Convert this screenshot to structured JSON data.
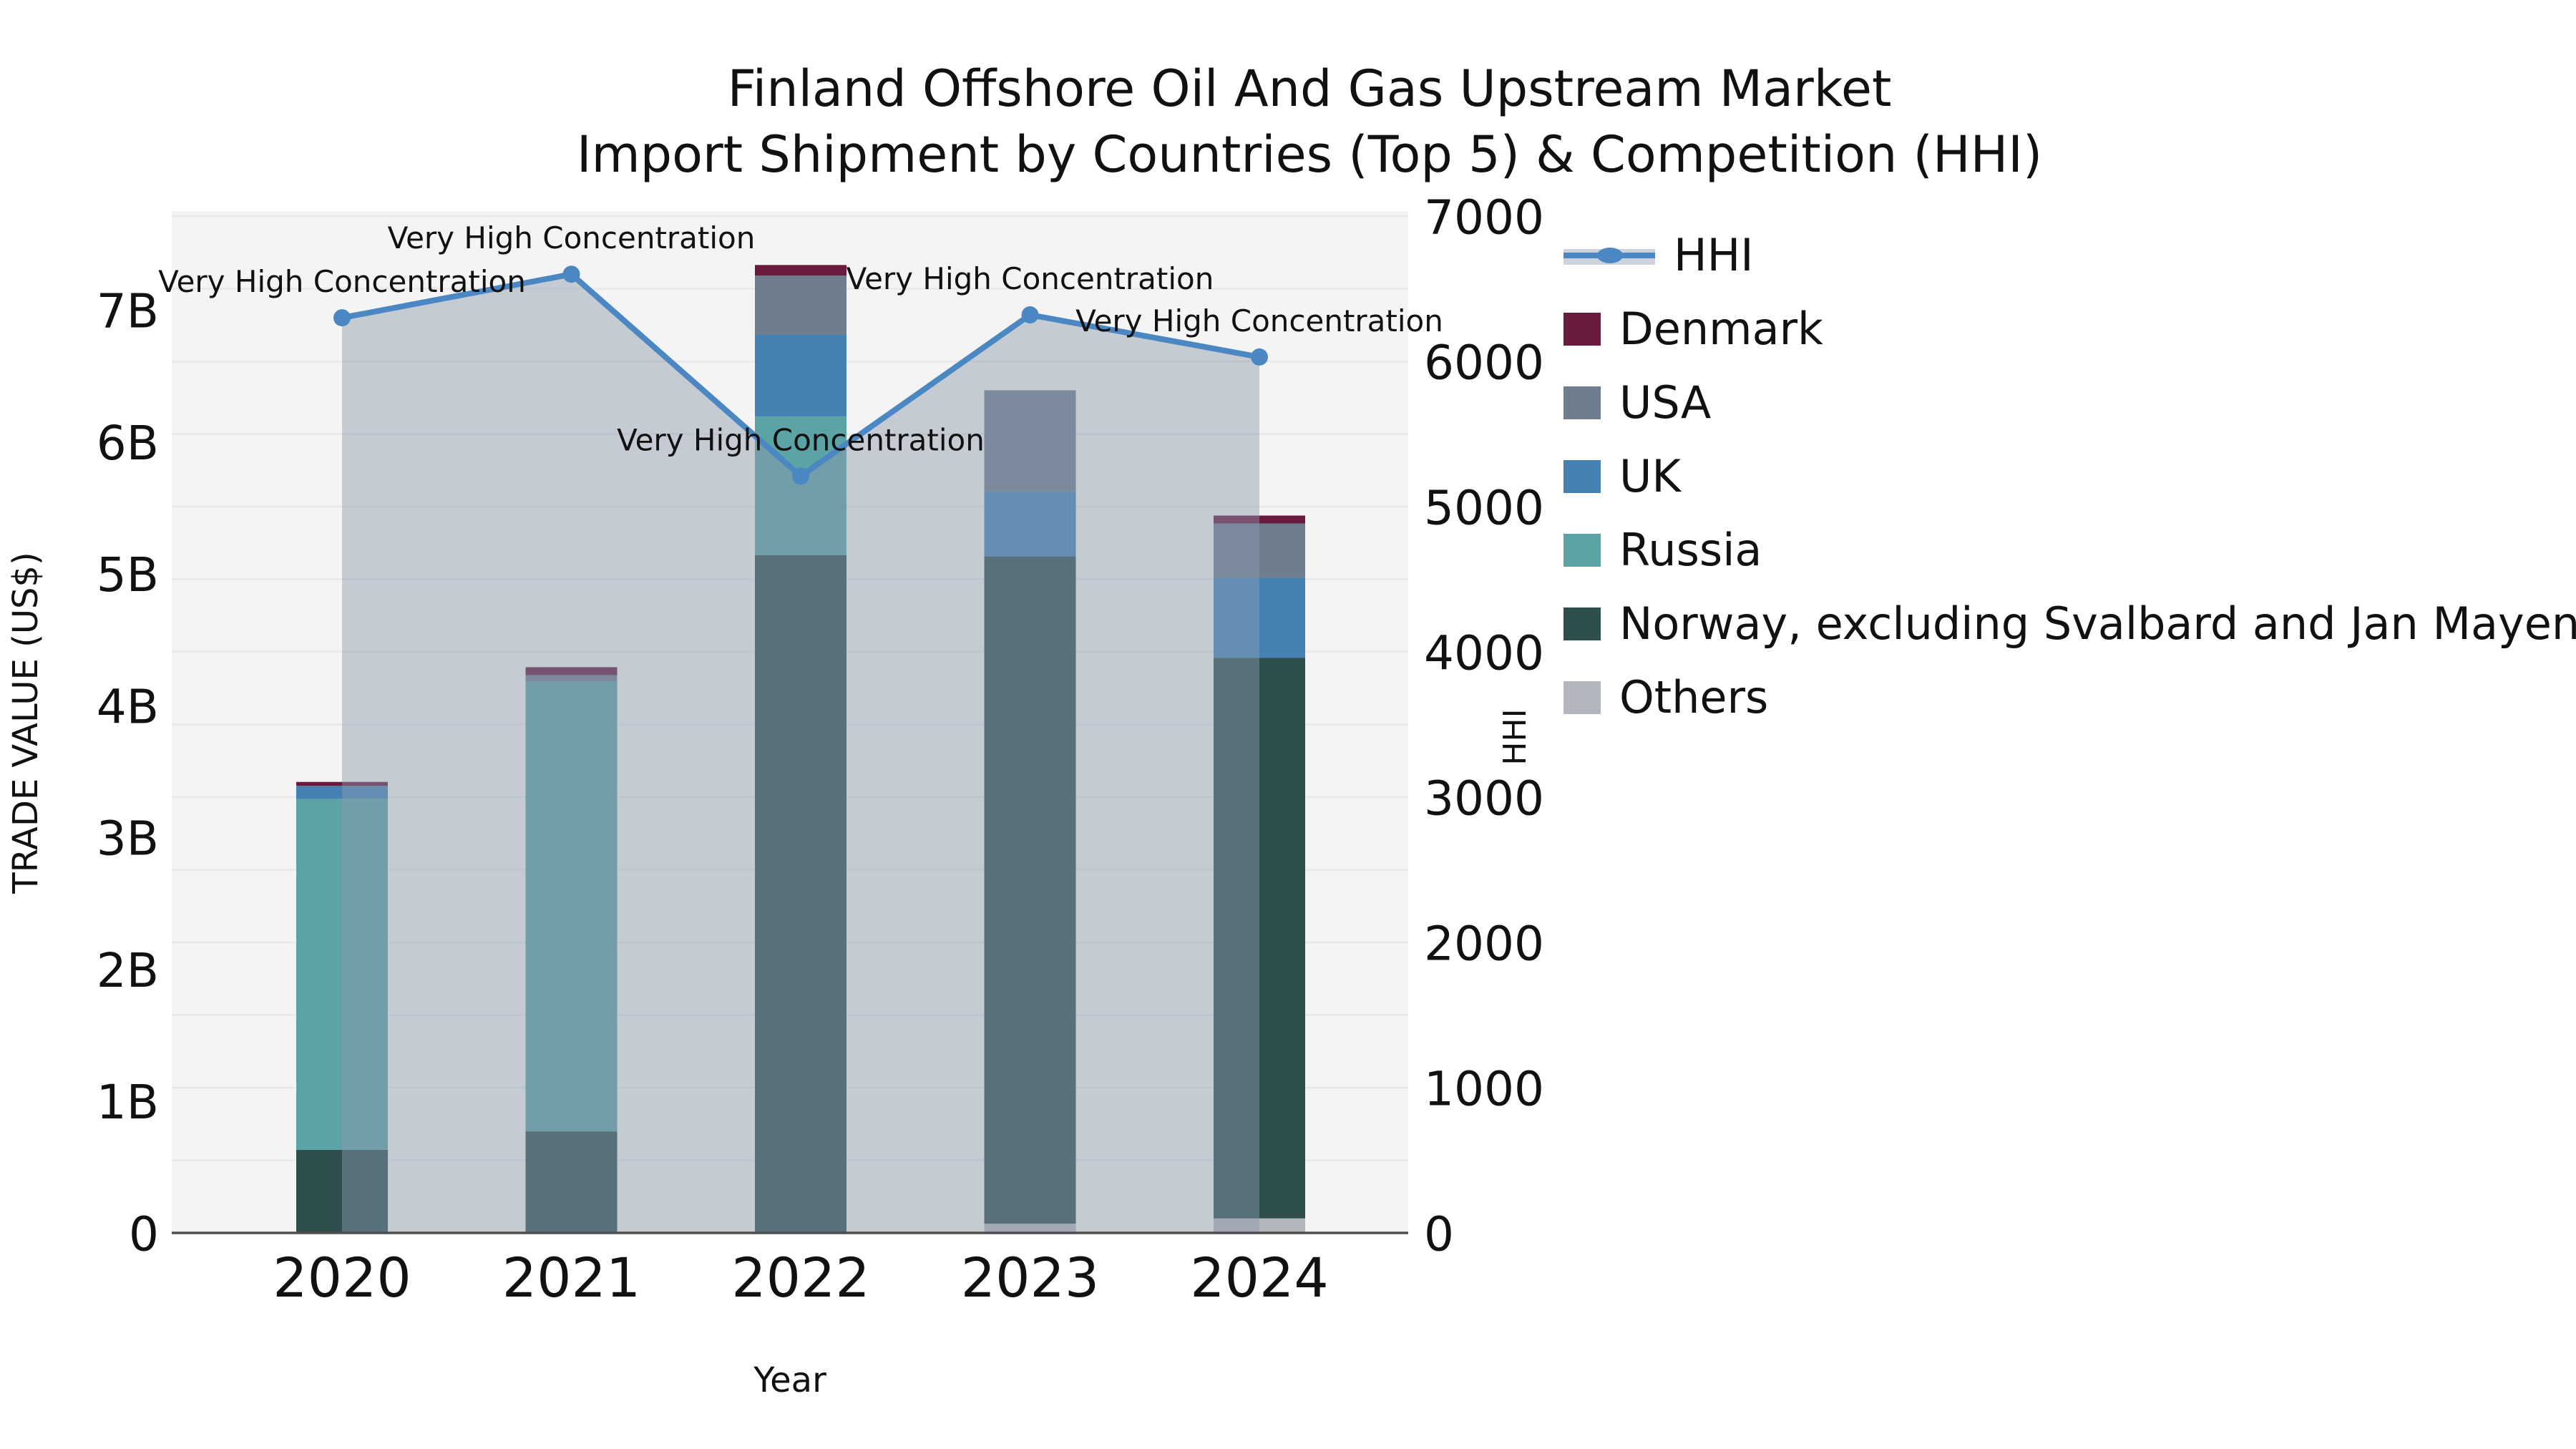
{
  "title": {
    "line1": "Finland Offshore Oil And Gas Upstream Market",
    "line2": "Import Shipment by Countries (Top 5) & Competition (HHI)"
  },
  "axes": {
    "x": {
      "label": "Year",
      "ticks": [
        "2020",
        "2021",
        "2022",
        "2023",
        "2024"
      ]
    },
    "y_left": {
      "label": "TRADE VALUE (US$)",
      "ticks": [
        "0",
        "1B",
        "2B",
        "3B",
        "4B",
        "5B",
        "6B",
        "7B"
      ],
      "max_b": 7
    },
    "y_right": {
      "label": "HHI",
      "ticks": [
        "0",
        "1000",
        "2000",
        "3000",
        "4000",
        "5000",
        "6000",
        "7000"
      ],
      "max": 7000
    }
  },
  "chart_data": {
    "type": "bar",
    "subtype": "stacked bars (left axis, US$ billions) + HHI line with area fill (right axis)",
    "categories": [
      "2020",
      "2021",
      "2022",
      "2023",
      "2024"
    ],
    "bar_unit": "billion US$",
    "series": [
      {
        "name": "Others",
        "color": "#b3b6bc",
        "values": [
          0,
          0,
          0,
          0.07,
          0.11
        ]
      },
      {
        "name": "Norway, excluding Svalbard and Jan Mayen",
        "color": "#2f4f4f",
        "values": [
          0.63,
          0.77,
          5.14,
          5.06,
          4.25
        ]
      },
      {
        "name": "Russia",
        "color": "#5ba3a5",
        "values": [
          2.66,
          3.41,
          1.05,
          0,
          0
        ]
      },
      {
        "name": "UK",
        "color": "#4681b4",
        "values": [
          0.1,
          0,
          0.62,
          0.49,
          0.61
        ]
      },
      {
        "name": "USA",
        "color": "#6e7e8e",
        "values": [
          0,
          0.05,
          0.45,
          0.77,
          0.41
        ]
      },
      {
        "name": "Denmark",
        "color": "#681b3d",
        "values": [
          0.03,
          0.06,
          0.08,
          0,
          0.06
        ]
      }
    ],
    "totals_billion": [
      3.42,
      4.29,
      7.34,
      6.39,
      5.44
    ],
    "line": {
      "name": "HHI",
      "axis": "right",
      "color": "#4b87c2",
      "fill_color": "#8b98ad",
      "fill_opacity": 0.45,
      "values": [
        6300,
        6600,
        5210,
        6320,
        6030
      ]
    },
    "annotation_label": "Very High Concentration",
    "xlabel": "Year",
    "ylabel_left": "TRADE VALUE (US$)",
    "ylabel_right": "HHI",
    "ylim_left_b": [
      0,
      7.75
    ],
    "ylim_right": [
      0,
      7000
    ],
    "grid": "horizontal, every 500 HHI units",
    "legend_position": "right"
  },
  "legend": {
    "items": [
      {
        "key": "hhi",
        "label": "HHI",
        "type": "line",
        "color": "#4b87c2",
        "band": "#ccd3dd"
      },
      {
        "key": "denmark",
        "label": "Denmark",
        "type": "swatch",
        "color": "#681b3d"
      },
      {
        "key": "usa",
        "label": "USA",
        "type": "swatch",
        "color": "#6e7e8e"
      },
      {
        "key": "uk",
        "label": "UK",
        "type": "swatch",
        "color": "#4681b4"
      },
      {
        "key": "russia",
        "label": "Russia",
        "type": "swatch",
        "color": "#5ba3a5"
      },
      {
        "key": "norway",
        "label": "Norway, excluding Svalbard and Jan Mayen",
        "type": "swatch",
        "color": "#2f4f4f"
      },
      {
        "key": "others",
        "label": "Others",
        "type": "swatch",
        "color": "#b3b6bc"
      }
    ]
  },
  "colors": {
    "plot_bg": "#f3f4f3",
    "grid": "#e7e8ea",
    "axis_line": "#4f4f4f",
    "text": "#1a1a1a"
  }
}
